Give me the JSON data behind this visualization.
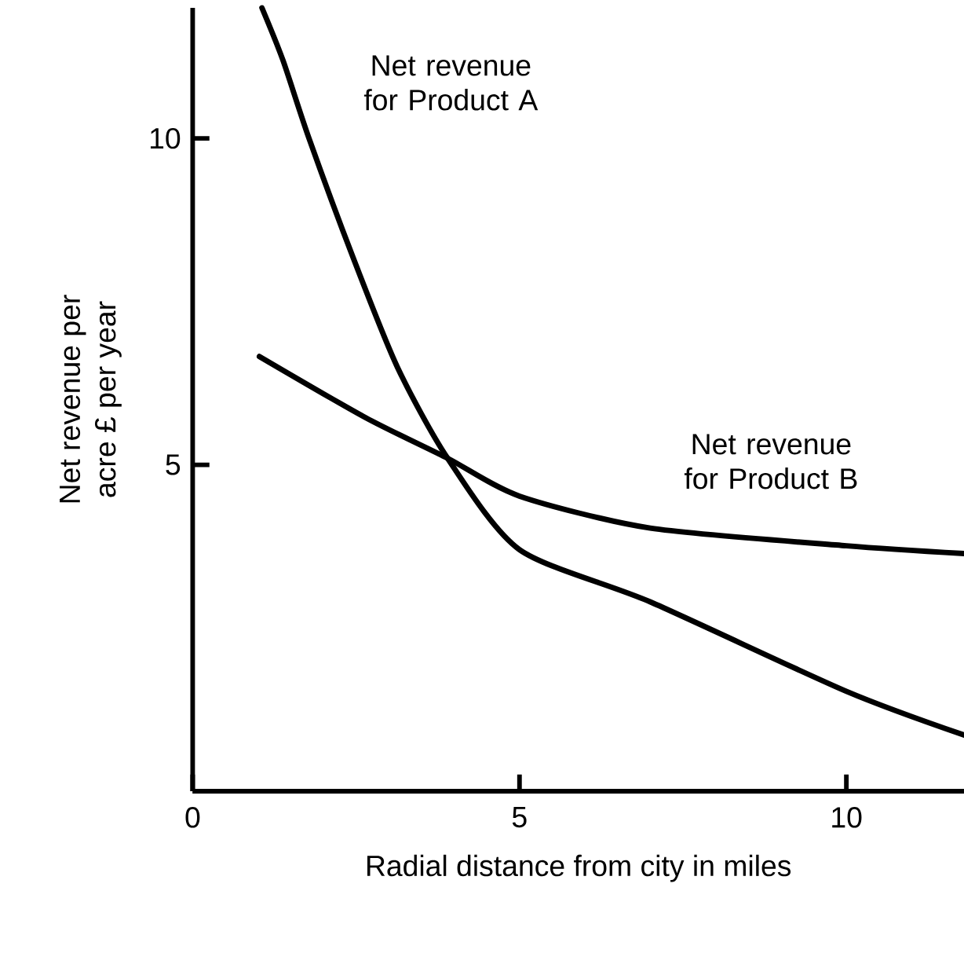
{
  "chart_data": {
    "type": "line",
    "xlabel": "Radial distance from city in miles",
    "ylabel": "Net revenue per acre £ per year",
    "xlim": [
      0,
      11.8
    ],
    "ylim": [
      0,
      12
    ],
    "xticks": [
      0,
      5,
      10
    ],
    "yticks": [
      {
        "value": 0,
        "label": null
      },
      5,
      10
    ],
    "grid": false,
    "legend": false,
    "marker": "none",
    "line_style": "solid",
    "series": [
      {
        "name": "Net revenue for Product A",
        "color": "#000000",
        "x": [
          1.06,
          1.38,
          1.78,
          2.46,
          3.13,
          3.9,
          5,
          7,
          10,
          11.8
        ],
        "values": [
          12.0,
          11.2,
          10.0,
          8.16,
          6.5,
          5.1,
          3.7,
          2.9,
          1.53,
          0.86
        ]
      },
      {
        "name": "Net revenue for Product B",
        "color": "#000000",
        "x": [
          1.02,
          2.65,
          3.9,
          5,
          7,
          10,
          11.8
        ],
        "values": [
          6.66,
          5.72,
          5.1,
          4.52,
          4.03,
          3.76,
          3.64
        ]
      }
    ]
  }
}
